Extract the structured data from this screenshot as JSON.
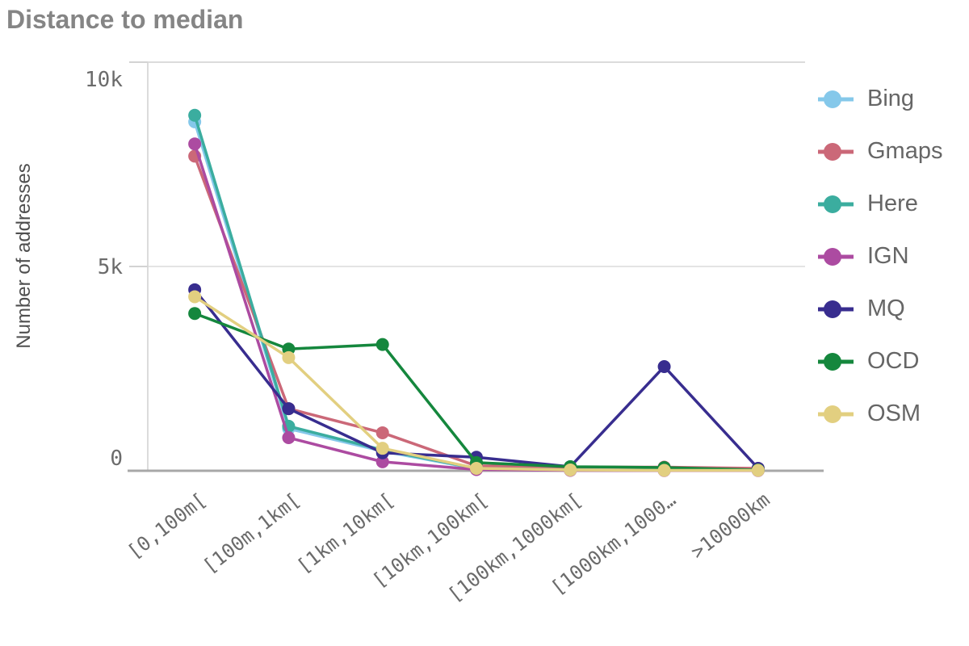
{
  "title": "Distance to median",
  "chart_data": {
    "type": "line",
    "title": "Distance to median",
    "xlabel": "",
    "ylabel": "Number of addresses",
    "ylim": [
      0,
      10000
    ],
    "ytick_values": [
      0,
      5000,
      10000
    ],
    "ytick_labels": [
      "0",
      "5k",
      "10k"
    ],
    "grid": "horizontal",
    "legend_position": "right",
    "categories": [
      "[0,100m[",
      "[100m,1km[",
      "[1km,10km[",
      "[10km,100km[",
      "[100km,1000km[",
      "[1000km,1000…",
      ">10000km"
    ],
    "series": [
      {
        "name": "Bing",
        "color": "#85C8EA",
        "values": [
          8540,
          1030,
          480,
          50,
          15,
          10,
          10
        ]
      },
      {
        "name": "Gmaps",
        "color": "#CB6878",
        "values": [
          7700,
          1520,
          930,
          120,
          90,
          90,
          60
        ]
      },
      {
        "name": "Here",
        "color": "#3BAD9F",
        "values": [
          8700,
          1090,
          510,
          60,
          20,
          15,
          15
        ]
      },
      {
        "name": "IGN",
        "color": "#AC4BA1",
        "values": [
          8000,
          810,
          220,
          30,
          10,
          5,
          5
        ]
      },
      {
        "name": "MQ",
        "color": "#382D8F",
        "values": [
          4430,
          1520,
          440,
          330,
          100,
          2550,
          60
        ]
      },
      {
        "name": "OCD",
        "color": "#15873D",
        "values": [
          3850,
          2980,
          3090,
          200,
          100,
          80,
          20
        ]
      },
      {
        "name": "OSM",
        "color": "#E2CF80",
        "values": [
          4260,
          2770,
          550,
          60,
          20,
          10,
          10
        ]
      }
    ],
    "style": {
      "title_color": "#858585",
      "axis_title_color": "#4f4f4f",
      "tick_label_color": "#6b6b6b",
      "legend_text_color": "#666666",
      "border_color": "#dbdbdb",
      "gridline_color": "#e4e4e4",
      "tick_color": "#d3d3d3",
      "baseline_color": "#a8a8a8"
    }
  }
}
